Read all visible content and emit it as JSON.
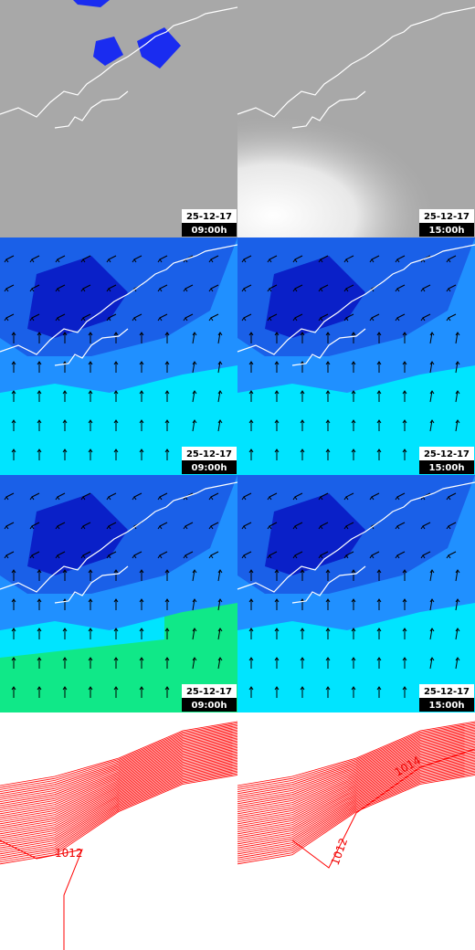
{
  "panels": [
    {
      "date": "25-12-17",
      "time": "09:00h"
    },
    {
      "date": "25-12-17",
      "time": "15:00h"
    },
    {
      "date": "25-12-17",
      "time": "09:00h"
    },
    {
      "date": "25-12-17",
      "time": "15:00h"
    },
    {
      "date": "25-12-17",
      "time": "09:00h"
    },
    {
      "date": "25-12-17",
      "time": "15:00h"
    },
    {
      "contour_labels": [
        "1012"
      ]
    },
    {
      "contour_labels": [
        "1012",
        "1014"
      ]
    }
  ]
}
